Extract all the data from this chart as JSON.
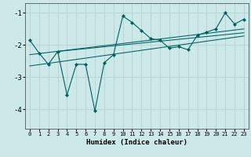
{
  "xlabel": "Humidex (Indice chaleur)",
  "bg_color": "#cce8e8",
  "grid_color": "#b8d4d4",
  "line_color": "#006060",
  "xlim": [
    -0.5,
    23.5
  ],
  "ylim": [
    -4.6,
    -0.7
  ],
  "yticks": [
    -4,
    -3,
    -2,
    -1
  ],
  "xticks": [
    0,
    1,
    2,
    3,
    4,
    5,
    6,
    7,
    8,
    9,
    10,
    11,
    12,
    13,
    14,
    15,
    16,
    17,
    18,
    19,
    20,
    21,
    22,
    23
  ],
  "main_series": [
    [
      0,
      -1.85
    ],
    [
      1,
      -2.25
    ],
    [
      2,
      -2.6
    ],
    [
      3,
      -2.2
    ],
    [
      4,
      -3.55
    ],
    [
      5,
      -2.6
    ],
    [
      6,
      -2.6
    ],
    [
      7,
      -4.05
    ],
    [
      8,
      -2.55
    ],
    [
      9,
      -2.3
    ],
    [
      10,
      -1.1
    ],
    [
      11,
      -1.3
    ],
    [
      12,
      -1.55
    ],
    [
      13,
      -1.8
    ],
    [
      14,
      -1.85
    ],
    [
      15,
      -2.1
    ],
    [
      16,
      -2.05
    ],
    [
      17,
      -2.15
    ],
    [
      18,
      -1.7
    ],
    [
      19,
      -1.6
    ],
    [
      20,
      -1.5
    ],
    [
      21,
      -1.0
    ],
    [
      22,
      -1.35
    ],
    [
      23,
      -1.2
    ]
  ],
  "trend_line1": [
    [
      0,
      -2.3
    ],
    [
      23,
      -1.5
    ]
  ],
  "trend_line2": [
    [
      0,
      -2.65
    ],
    [
      23,
      -1.72
    ]
  ],
  "trend_line3": [
    [
      3,
      -2.2
    ],
    [
      23,
      -1.62
    ]
  ]
}
